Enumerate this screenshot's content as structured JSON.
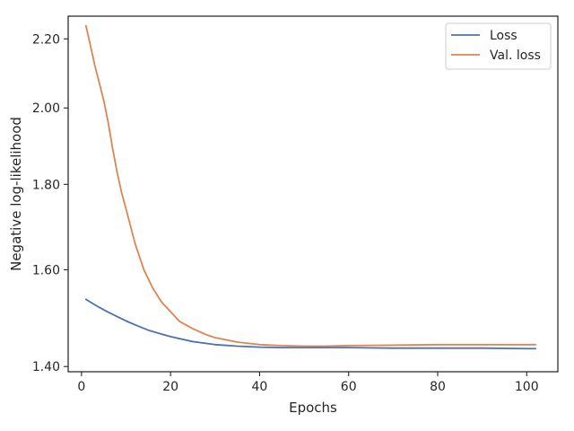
{
  "chart_data": {
    "type": "line",
    "title": "",
    "xlabel": "Epochs",
    "ylabel": "Negative log-likelihood",
    "xlim": [
      -3,
      107
    ],
    "ylim": [
      1.39,
      2.27
    ],
    "y_scale": "log",
    "x_ticks": [
      0,
      20,
      40,
      60,
      80,
      100
    ],
    "x_tick_labels": [
      "0",
      "20",
      "40",
      "60",
      "80",
      "100"
    ],
    "y_ticks": [
      1.4,
      1.6,
      1.8,
      2.0,
      2.2
    ],
    "y_tick_labels": [
      "1.40",
      "1.60",
      "1.80",
      "2.00",
      "2.20"
    ],
    "grid": false,
    "legend_position": "top-right",
    "series": [
      {
        "name": "Loss",
        "color": "#4c72b0",
        "x": [
          1,
          2,
          4,
          6,
          8,
          10,
          12,
          15,
          18,
          20,
          25,
          30,
          35,
          40,
          45,
          50,
          60,
          70,
          80,
          90,
          100,
          102
        ],
        "values": [
          1.536,
          1.53,
          1.519,
          1.509,
          1.5,
          1.491,
          1.483,
          1.472,
          1.464,
          1.459,
          1.449,
          1.443,
          1.44,
          1.438,
          1.437,
          1.437,
          1.437,
          1.436,
          1.436,
          1.436,
          1.435,
          1.435
        ]
      },
      {
        "name": "Val. loss",
        "color": "#dd8452",
        "x": [
          1,
          2,
          3,
          4,
          5,
          6,
          7,
          8,
          9,
          10,
          12,
          14,
          16,
          18,
          20,
          22,
          25,
          28,
          30,
          35,
          40,
          45,
          50,
          55,
          60,
          70,
          80,
          90,
          100,
          102
        ],
        "values": [
          2.24,
          2.18,
          2.12,
          2.07,
          2.02,
          1.96,
          1.89,
          1.83,
          1.78,
          1.74,
          1.66,
          1.6,
          1.56,
          1.53,
          1.51,
          1.49,
          1.475,
          1.463,
          1.457,
          1.448,
          1.443,
          1.441,
          1.44,
          1.44,
          1.441,
          1.442,
          1.443,
          1.443,
          1.443,
          1.443
        ]
      }
    ]
  }
}
